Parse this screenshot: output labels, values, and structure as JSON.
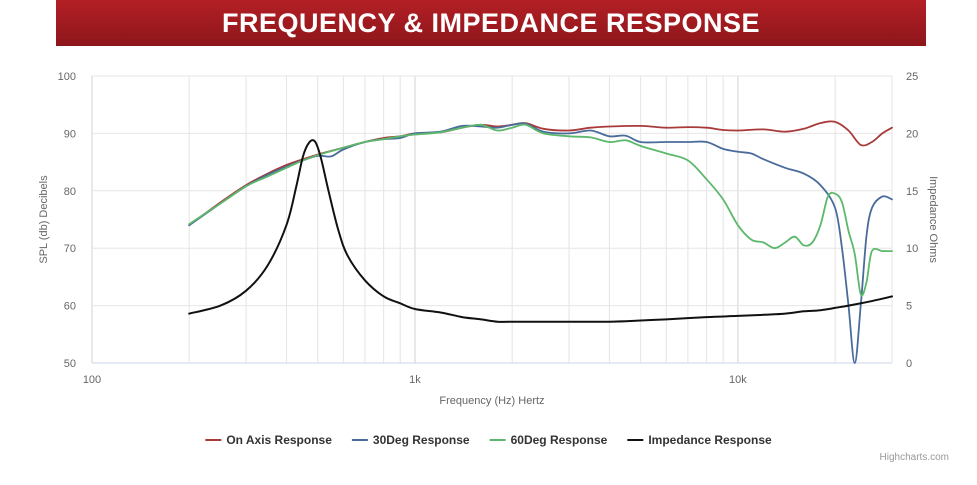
{
  "header": {
    "title": "FREQUENCY & IMPEDANCE RESPONSE"
  },
  "credit": "Highcharts.com",
  "chart_data": {
    "type": "line",
    "x_scale": "log",
    "xlabel": "Frequency (Hz) Hertz",
    "ylabel": "SPL (db) Decibels",
    "y2label": "Impedance Ohms",
    "xlim": [
      100,
      30000
    ],
    "ylim": [
      50,
      100
    ],
    "y2lim": [
      0,
      25
    ],
    "x_ticks": [
      {
        "value": 100,
        "label": "100"
      },
      {
        "value": 1000,
        "label": "1k"
      },
      {
        "value": 10000,
        "label": "10k"
      }
    ],
    "y_ticks": [
      50,
      60,
      70,
      80,
      90,
      100
    ],
    "y2_ticks": [
      0,
      5,
      10,
      15,
      20,
      25
    ],
    "grid": true,
    "legend_position": "bottom-center",
    "series": [
      {
        "name": "On Axis Response",
        "color": "#a83a3a",
        "axis": "left",
        "points": [
          [
            200,
            74
          ],
          [
            250,
            78
          ],
          [
            300,
            81
          ],
          [
            350,
            83
          ],
          [
            400,
            84.5
          ],
          [
            450,
            85.5
          ],
          [
            500,
            86.3
          ],
          [
            600,
            87.5
          ],
          [
            700,
            88.5
          ],
          [
            800,
            89.2
          ],
          [
            900,
            89.5
          ],
          [
            1000,
            90
          ],
          [
            1200,
            90.2
          ],
          [
            1400,
            91
          ],
          [
            1600,
            91.5
          ],
          [
            1800,
            91.2
          ],
          [
            2000,
            91.5
          ],
          [
            2200,
            91.8
          ],
          [
            2500,
            90.8
          ],
          [
            3000,
            90.5
          ],
          [
            3500,
            91
          ],
          [
            4000,
            91.2
          ],
          [
            5000,
            91.3
          ],
          [
            6000,
            91
          ],
          [
            7000,
            91.1
          ],
          [
            8000,
            91
          ],
          [
            9000,
            90.6
          ],
          [
            10000,
            90.5
          ],
          [
            12000,
            90.7
          ],
          [
            14000,
            90.3
          ],
          [
            16000,
            90.8
          ],
          [
            18000,
            91.8
          ],
          [
            20000,
            92
          ],
          [
            22000,
            90.5
          ],
          [
            24000,
            88
          ],
          [
            26000,
            88.5
          ],
          [
            28000,
            90
          ],
          [
            30000,
            91
          ]
        ]
      },
      {
        "name": "30Deg Response",
        "color": "#4a6c9b",
        "axis": "left",
        "points": [
          [
            200,
            74
          ],
          [
            250,
            77.8
          ],
          [
            300,
            80.8
          ],
          [
            350,
            82.8
          ],
          [
            400,
            84.2
          ],
          [
            450,
            85.3
          ],
          [
            500,
            86.1
          ],
          [
            550,
            86
          ],
          [
            600,
            87.2
          ],
          [
            700,
            88.5
          ],
          [
            800,
            89
          ],
          [
            900,
            89.2
          ],
          [
            1000,
            90
          ],
          [
            1200,
            90.3
          ],
          [
            1400,
            91.3
          ],
          [
            1600,
            91.2
          ],
          [
            1800,
            91
          ],
          [
            2000,
            91.5
          ],
          [
            2200,
            91.7
          ],
          [
            2500,
            90.3
          ],
          [
            3000,
            90
          ],
          [
            3500,
            90.5
          ],
          [
            4000,
            89.5
          ],
          [
            4500,
            89.6
          ],
          [
            5000,
            88.5
          ],
          [
            6000,
            88.5
          ],
          [
            7000,
            88.5
          ],
          [
            8000,
            88.5
          ],
          [
            9000,
            87.3
          ],
          [
            10000,
            86.8
          ],
          [
            11000,
            86.5
          ],
          [
            12000,
            85.5
          ],
          [
            14000,
            84
          ],
          [
            16000,
            83
          ],
          [
            18000,
            81
          ],
          [
            20000,
            77
          ],
          [
            21000,
            70
          ],
          [
            22000,
            60
          ],
          [
            23000,
            50
          ],
          [
            24000,
            60
          ],
          [
            25000,
            72
          ],
          [
            26000,
            77
          ],
          [
            28000,
            79
          ],
          [
            30000,
            78.5
          ]
        ]
      },
      {
        "name": "60Deg Response",
        "color": "#5cb86b",
        "axis": "left",
        "points": [
          [
            200,
            74.2
          ],
          [
            250,
            77.8
          ],
          [
            300,
            80.8
          ],
          [
            350,
            82.5
          ],
          [
            400,
            84
          ],
          [
            450,
            85.3
          ],
          [
            500,
            86.2
          ],
          [
            600,
            87.5
          ],
          [
            700,
            88.5
          ],
          [
            800,
            89
          ],
          [
            900,
            89.5
          ],
          [
            1000,
            89.8
          ],
          [
            1200,
            90.2
          ],
          [
            1400,
            91
          ],
          [
            1600,
            91.5
          ],
          [
            1800,
            90.5
          ],
          [
            2000,
            91
          ],
          [
            2200,
            91.5
          ],
          [
            2500,
            90
          ],
          [
            3000,
            89.5
          ],
          [
            3500,
            89.3
          ],
          [
            4000,
            88.5
          ],
          [
            4500,
            88.8
          ],
          [
            5000,
            87.8
          ],
          [
            6000,
            86.5
          ],
          [
            7000,
            85.3
          ],
          [
            8000,
            82
          ],
          [
            9000,
            78.5
          ],
          [
            10000,
            74
          ],
          [
            11000,
            71.5
          ],
          [
            12000,
            71
          ],
          [
            13000,
            70
          ],
          [
            14000,
            71
          ],
          [
            15000,
            72
          ],
          [
            16000,
            70.5
          ],
          [
            17000,
            71
          ],
          [
            18000,
            74
          ],
          [
            19000,
            79
          ],
          [
            20000,
            79.5
          ],
          [
            21000,
            78
          ],
          [
            22000,
            73
          ],
          [
            23000,
            69
          ],
          [
            24000,
            62
          ],
          [
            25000,
            64
          ],
          [
            26000,
            69.5
          ],
          [
            28000,
            69.5
          ],
          [
            30000,
            69.5
          ]
        ]
      },
      {
        "name": "Impedance Response",
        "color": "#111111",
        "axis": "right",
        "points": [
          [
            200,
            4.3
          ],
          [
            250,
            5
          ],
          [
            300,
            6.3
          ],
          [
            350,
            8.5
          ],
          [
            400,
            12
          ],
          [
            430,
            15.5
          ],
          [
            450,
            18
          ],
          [
            470,
            19.2
          ],
          [
            490,
            19.3
          ],
          [
            510,
            18
          ],
          [
            540,
            15
          ],
          [
            580,
            11.5
          ],
          [
            620,
            9.3
          ],
          [
            700,
            7.2
          ],
          [
            800,
            5.8
          ],
          [
            900,
            5.2
          ],
          [
            1000,
            4.7
          ],
          [
            1200,
            4.4
          ],
          [
            1400,
            4
          ],
          [
            1600,
            3.8
          ],
          [
            1800,
            3.6
          ],
          [
            2000,
            3.6
          ],
          [
            3000,
            3.6
          ],
          [
            4000,
            3.6
          ],
          [
            5000,
            3.7
          ],
          [
            6000,
            3.8
          ],
          [
            8000,
            4
          ],
          [
            10000,
            4.1
          ],
          [
            12000,
            4.2
          ],
          [
            14000,
            4.3
          ],
          [
            16000,
            4.5
          ],
          [
            18000,
            4.6
          ],
          [
            20000,
            4.8
          ],
          [
            22000,
            5
          ],
          [
            25000,
            5.3
          ],
          [
            28000,
            5.6
          ],
          [
            30000,
            5.8
          ]
        ]
      }
    ]
  }
}
